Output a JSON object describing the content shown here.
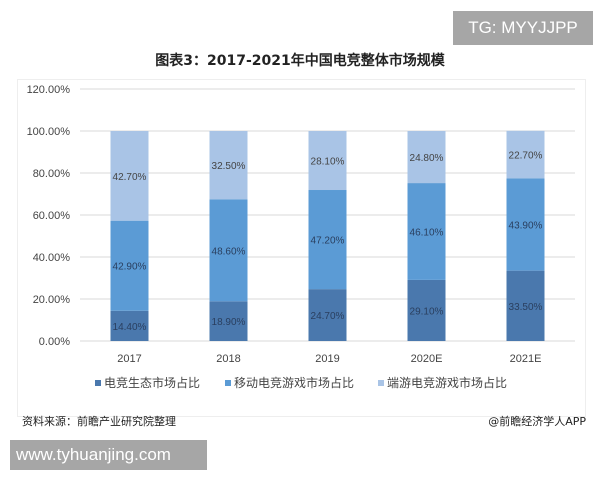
{
  "watermark_top": "TG: MYYJJPP",
  "watermark_bottom": "www.tyhuanjing.com",
  "source": "资料来源：前瞻产业研究院整理",
  "credit": "@前瞻经济学人APP",
  "chart_data": {
    "type": "bar",
    "stacked": true,
    "title": "图表3：2017-2021年中国电竞整体市场规模",
    "categories": [
      "2017",
      "2018",
      "2019",
      "2020E",
      "2021E"
    ],
    "series": [
      {
        "name": "电竞生态市场占比",
        "color": "#4a78ad",
        "values": [
          14.4,
          18.9,
          24.7,
          29.1,
          33.5
        ],
        "labels": [
          "14.40%",
          "18.90%",
          "24.70%",
          "29.10%",
          "33.50%"
        ]
      },
      {
        "name": "移动电竞游戏市场占比",
        "color": "#5b9bd5",
        "values": [
          42.9,
          48.6,
          47.2,
          46.1,
          43.9
        ],
        "labels": [
          "42.90%",
          "48.60%",
          "47.20%",
          "46.10%",
          "43.90%"
        ]
      },
      {
        "name": "端游电竞游戏市场占比",
        "color": "#a9c4e6",
        "values": [
          42.7,
          32.5,
          28.1,
          24.8,
          22.7
        ],
        "labels": [
          "42.70%",
          "32.50%",
          "28.10%",
          "24.80%",
          "22.70%"
        ]
      }
    ],
    "yticks": [
      "0.00%",
      "20.00%",
      "40.00%",
      "60.00%",
      "80.00%",
      "100.00%",
      "120.00%"
    ],
    "ylim": [
      0,
      120
    ],
    "grid": true,
    "legend": "bottom"
  }
}
